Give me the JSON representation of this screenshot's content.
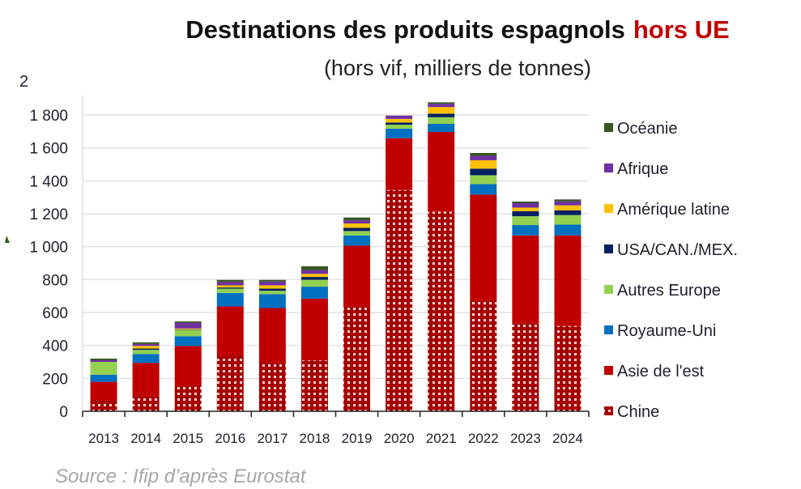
{
  "chart_data": {
    "type": "bar",
    "stacked": true,
    "title": "Destinations des produits espagnols",
    "title_accent": "hors UE",
    "subtitle": "(hors vif, milliers de tonnes)",
    "xlabel": "",
    "ylabel": "",
    "ylim": [
      0,
      1800
    ],
    "y_ticks": [
      0,
      200,
      400,
      600,
      800,
      1000,
      1200,
      1400,
      1600,
      1800
    ],
    "y_tick_labels": [
      "0",
      "200",
      "400",
      "600",
      "800",
      "1 000",
      "1 200",
      "1 400",
      "1 600",
      "1 800"
    ],
    "y_stray_label": "2",
    "grid": true,
    "legend_position": "right",
    "categories": [
      "2013",
      "2014",
      "2015",
      "2016",
      "2017",
      "2018",
      "2019",
      "2020",
      "2021",
      "2022",
      "2023",
      "2024"
    ],
    "series": [
      {
        "name": "Chine",
        "color": "#a50000",
        "pattern": "dots",
        "values": [
          64,
          93,
          157,
          337,
          293,
          309,
          635,
          1344,
          1213,
          671,
          535,
          518
        ]
      },
      {
        "name": "Asie de l'est",
        "color": "#c00000",
        "values": [
          115,
          201,
          240,
          300,
          334,
          375,
          371,
          315,
          484,
          645,
          533,
          550
        ]
      },
      {
        "name": "Royaume-Uni",
        "color": "#0070c0",
        "values": [
          43,
          54,
          59,
          82,
          85,
          73,
          62,
          58,
          49,
          64,
          63,
          66
        ]
      },
      {
        "name": "Autres Europe",
        "color": "#92d050",
        "values": [
          78,
          25,
          39,
          26,
          20,
          42,
          27,
          24,
          40,
          54,
          54,
          58
        ]
      },
      {
        "name": "USA/CAN./MEX.",
        "color": "#002060",
        "values": [
          0,
          8,
          3,
          7,
          13,
          17,
          19,
          13,
          22,
          40,
          31,
          29
        ]
      },
      {
        "name": "Amérique latine",
        "color": "#ffc000",
        "values": [
          0,
          16,
          5,
          13,
          20,
          19,
          27,
          22,
          40,
          51,
          21,
          30
        ]
      },
      {
        "name": "Afrique",
        "color": "#7030a0",
        "values": [
          10,
          12,
          35,
          21,
          23,
          23,
          19,
          20,
          20,
          27,
          27,
          24
        ]
      },
      {
        "name": "Océanie",
        "color": "#375623",
        "values": [
          10,
          10,
          8,
          12,
          10,
          23,
          17,
          0,
          9,
          17,
          10,
          12
        ]
      }
    ],
    "legend_order": [
      "Océanie",
      "Afrique",
      "Amérique latine",
      "USA/CAN./MEX.",
      "Autres Europe",
      "Royaume-Uni",
      "Asie de l'est",
      "Chine"
    ],
    "source": "Source : Ifip d’après Eurostat"
  }
}
